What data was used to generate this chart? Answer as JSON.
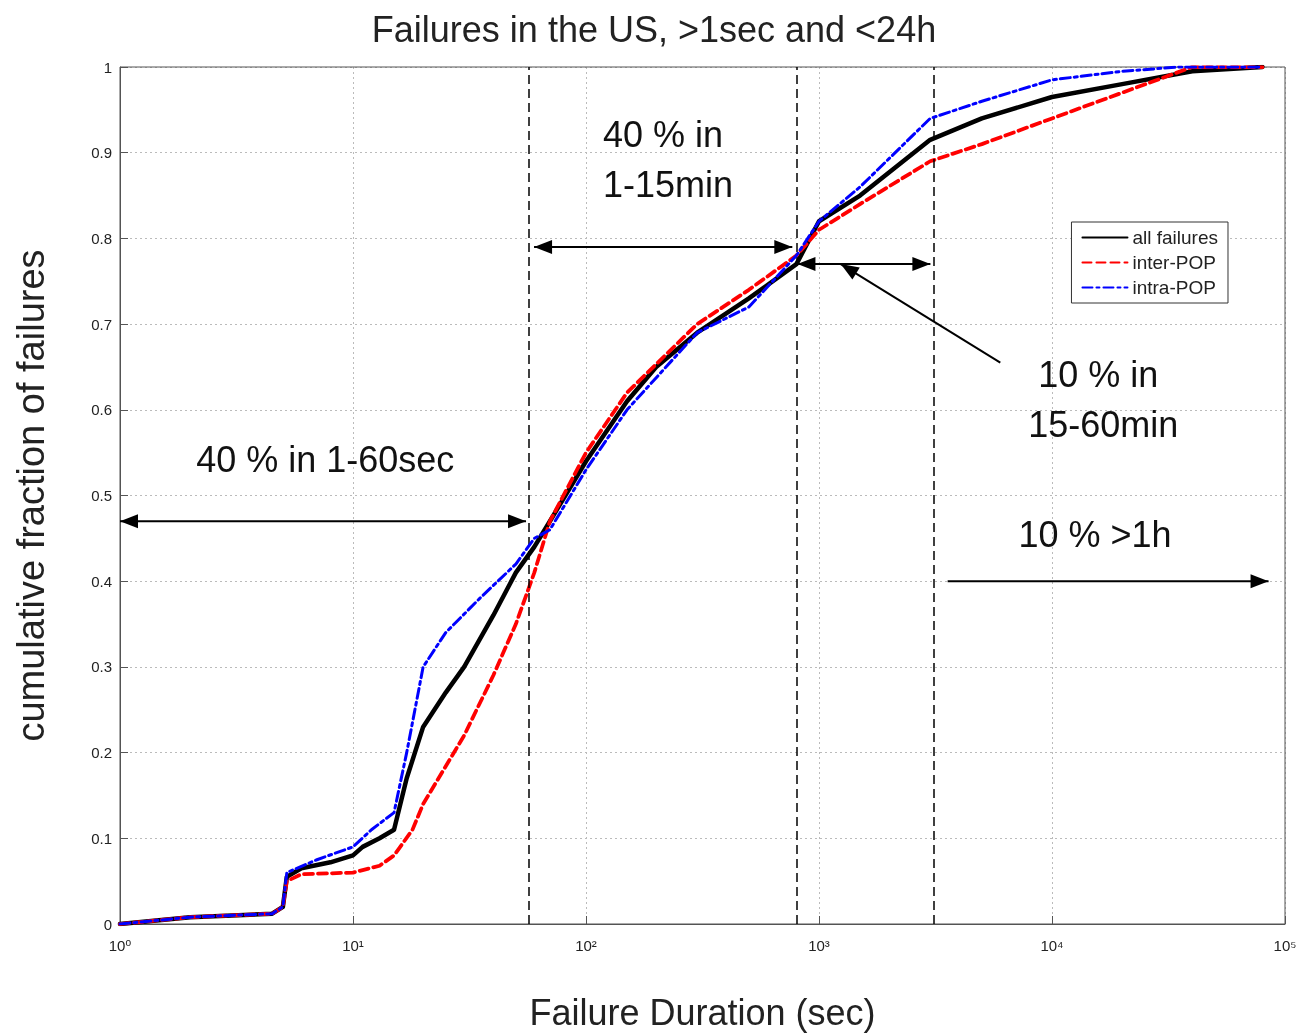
{
  "chart_data": {
    "type": "line",
    "title": "Failures in the US, >1sec and <24h",
    "xlabel": "Failure Duration (sec)",
    "ylabel": "cumulative fraction of failures",
    "log": "x",
    "grid": true,
    "legend": "top right",
    "marker": "none",
    "xlim": [
      1,
      100000
    ],
    "ylim": [
      0,
      1
    ],
    "xticks": [
      {
        "value": 1,
        "label": "10⁰"
      },
      {
        "value": 10,
        "label": "10¹"
      },
      {
        "value": 100,
        "label": "10²"
      },
      {
        "value": 1000,
        "label": "10³"
      },
      {
        "value": 10000,
        "label": "10⁴"
      },
      {
        "value": 100000,
        "label": "10⁵"
      }
    ],
    "yticks": [
      0,
      0.1,
      0.2,
      0.3,
      0.4,
      0.5,
      0.6,
      0.7,
      0.8,
      0.9,
      1
    ],
    "series": [
      {
        "name": "all failures",
        "color": "#000000",
        "line_style": "solid",
        "x": [
          1,
          2,
          4.5,
          5,
          5.2,
          6,
          8,
          10,
          11,
          13,
          15,
          17,
          20,
          25,
          30,
          40,
          50,
          60,
          70,
          100,
          150,
          200,
          300,
          500,
          800,
          1000,
          1500,
          3000,
          5000,
          10000,
          20000,
          40000,
          80000
        ],
        "values": [
          0,
          0.008,
          0.012,
          0.02,
          0.055,
          0.065,
          0.072,
          0.08,
          0.09,
          0.1,
          0.11,
          0.17,
          0.23,
          0.27,
          0.3,
          0.36,
          0.41,
          0.44,
          0.47,
          0.54,
          0.61,
          0.65,
          0.69,
          0.73,
          0.77,
          0.82,
          0.85,
          0.915,
          0.94,
          0.965,
          0.98,
          0.995,
          1
        ]
      },
      {
        "name": "inter-POP",
        "color": "#ff0000",
        "line_style": "dashed",
        "x": [
          1,
          2,
          4.5,
          5,
          5.2,
          6,
          10,
          13,
          15,
          18,
          20,
          30,
          40,
          50,
          60,
          70,
          100,
          150,
          300,
          500,
          800,
          1000,
          1500,
          3000,
          5000,
          10000,
          20000,
          40000,
          80000
        ],
        "values": [
          0,
          0.008,
          0.012,
          0.02,
          0.05,
          0.058,
          0.06,
          0.068,
          0.08,
          0.11,
          0.14,
          0.22,
          0.29,
          0.35,
          0.41,
          0.47,
          0.55,
          0.62,
          0.7,
          0.74,
          0.78,
          0.81,
          0.84,
          0.89,
          0.91,
          0.94,
          0.97,
          1,
          1
        ]
      },
      {
        "name": "intra-POP",
        "color": "#0000ff",
        "line_style": "dashdot",
        "x": [
          1,
          2,
          4.5,
          5,
          5.2,
          7,
          10,
          12,
          15,
          17,
          20,
          25,
          35,
          50,
          60,
          70,
          100,
          150,
          300,
          500,
          800,
          1000,
          1500,
          3000,
          5000,
          10000,
          20000,
          35000,
          80000
        ],
        "values": [
          0,
          0.008,
          0.012,
          0.02,
          0.06,
          0.075,
          0.09,
          0.11,
          0.13,
          0.2,
          0.3,
          0.34,
          0.38,
          0.42,
          0.45,
          0.46,
          0.53,
          0.6,
          0.69,
          0.72,
          0.78,
          0.82,
          0.86,
          0.94,
          0.96,
          0.985,
          0.995,
          1,
          1
        ]
      }
    ],
    "ref_lines": [
      {
        "axis": "x",
        "value": 57,
        "color": "#000000",
        "line_style": "dashed"
      },
      {
        "axis": "x",
        "value": 800,
        "color": "#000000",
        "line_style": "dashed"
      },
      {
        "axis": "x",
        "value": 3100,
        "color": "#000000",
        "line_style": "dashed"
      }
    ],
    "annotations": [
      "40 % in 1-60sec",
      "40 % in 1-15min",
      "10 % in 15-60min",
      "10 % >1h"
    ]
  }
}
